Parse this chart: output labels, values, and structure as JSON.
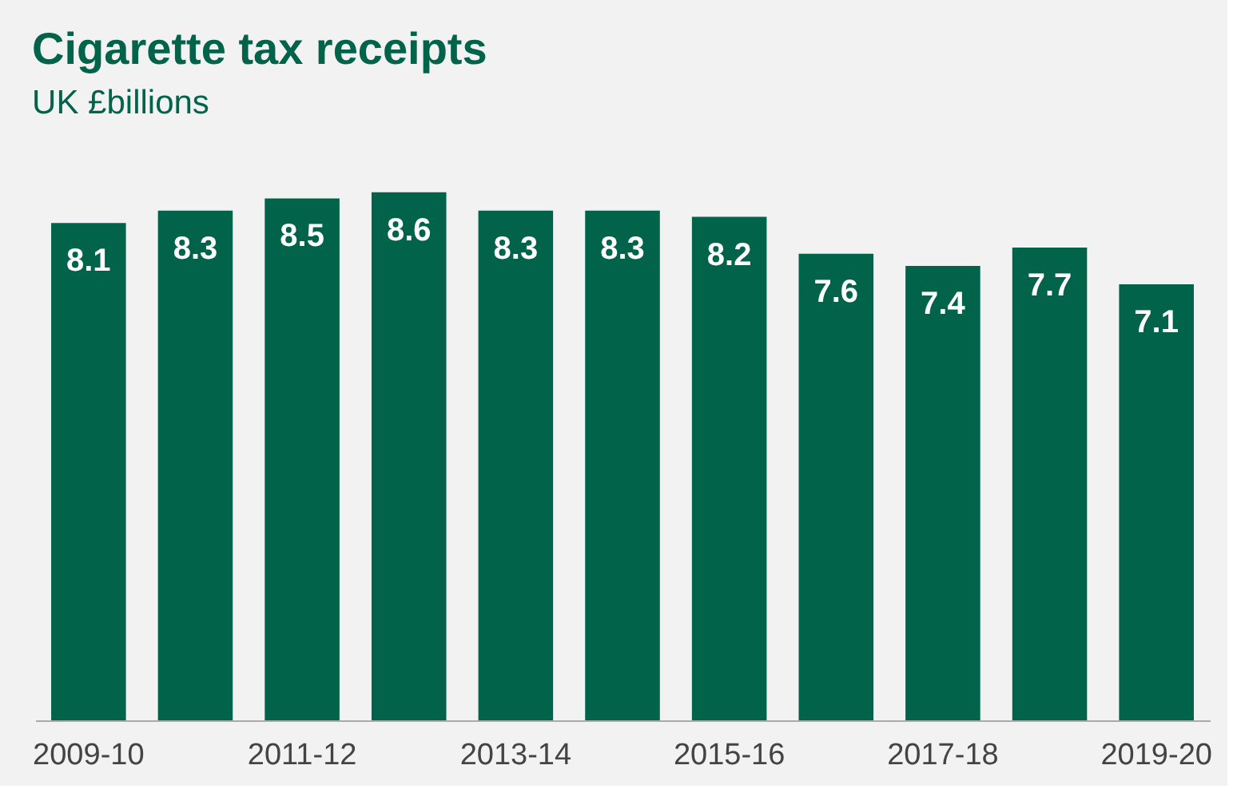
{
  "chart_data": {
    "type": "bar",
    "title": "Cigarette tax receipts",
    "subtitle": "UK £billions",
    "categories": [
      "2009-10",
      null,
      "2011-12",
      null,
      "2013-14",
      null,
      "2015-16",
      null,
      "2017-18",
      null,
      "2019-20"
    ],
    "values": [
      8.1,
      8.3,
      8.5,
      8.6,
      8.3,
      8.3,
      8.2,
      7.6,
      7.4,
      7.7,
      7.1
    ],
    "color": "#00634a",
    "data_labels": true,
    "grid": false
  }
}
